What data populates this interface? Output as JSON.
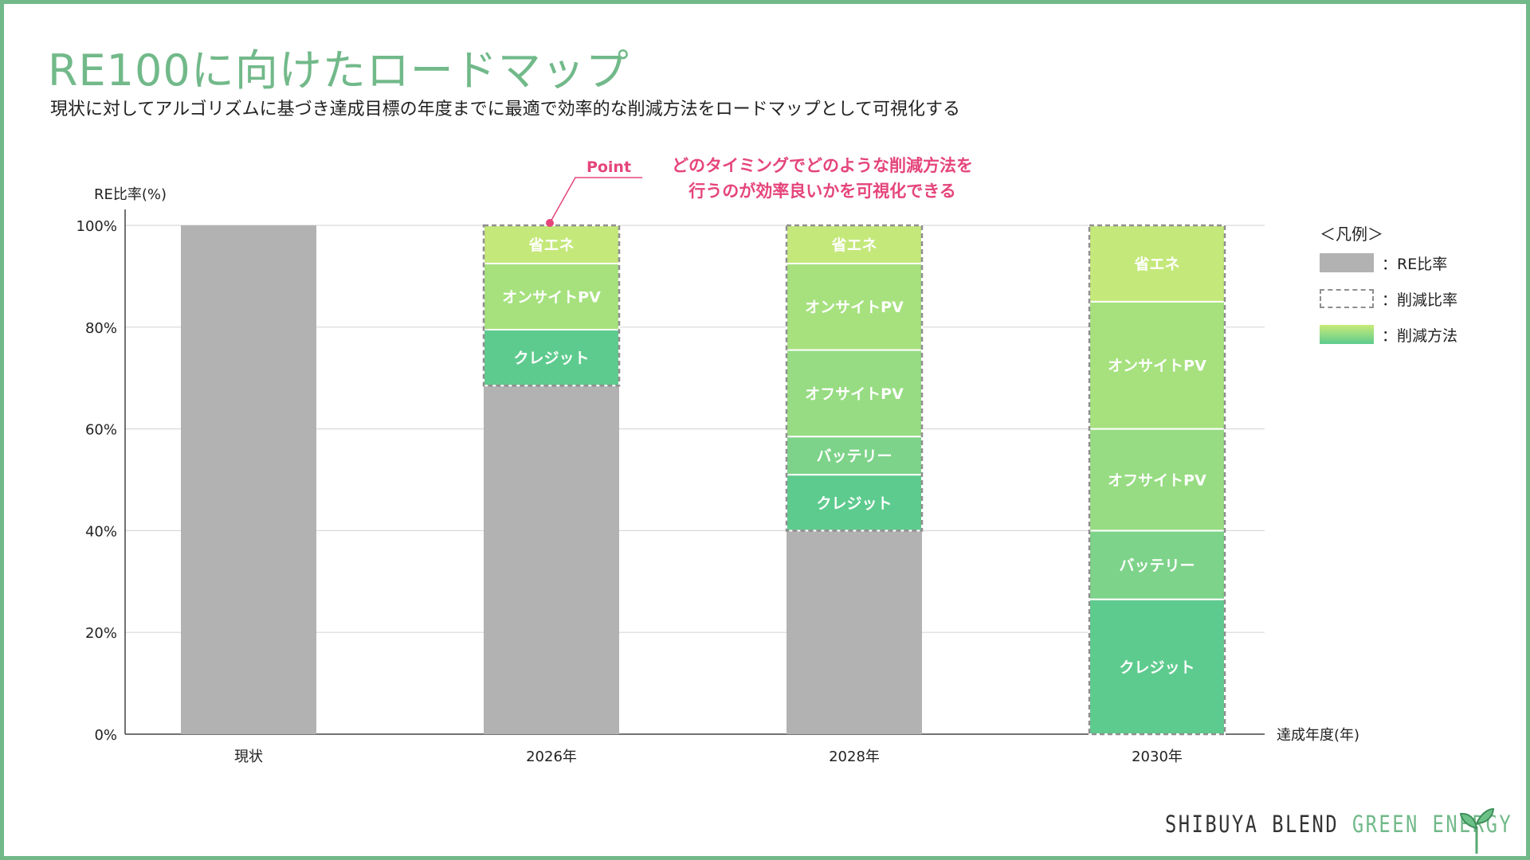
{
  "header": {
    "title": "RE100に向けたロードマップ",
    "subtitle": "現状に対してアルゴリズムに基づき達成目標の年度までに最適で効率的な削減方法をロードマップとして可視化する"
  },
  "colors": {
    "brand_green": "#72b98a",
    "re_gray": "#b2b2b2",
    "dash_gray": "#8f8f8f",
    "point_pink": "#e5457b",
    "省エネ": "#c4e87a",
    "オンサイトPV": "#a6e17e",
    "オフサイトPV": "#97dc82",
    "バッテリー": "#7dd389",
    "クレジット": "#5ecb8e"
  },
  "chart_data": {
    "type": "bar",
    "stacked": true,
    "title": "RE100に向けたロードマップ",
    "ylabel": "RE比率(%)",
    "xlabel": "達成年度(年)",
    "ylim": [
      0,
      100
    ],
    "yticks": [
      0,
      20,
      40,
      60,
      80,
      100
    ],
    "ytick_format": "%",
    "categories": [
      "現状",
      "2026年",
      "2028年",
      "2030年"
    ],
    "bars": [
      {
        "category": "現状",
        "re": 100,
        "segments": []
      },
      {
        "category": "2026年",
        "re": 68.5,
        "segments": [
          {
            "name": "クレジット",
            "value": 11
          },
          {
            "name": "オンサイトPV",
            "value": 13
          },
          {
            "name": "省エネ",
            "value": 7.5
          }
        ]
      },
      {
        "category": "2028年",
        "re": 40,
        "segments": [
          {
            "name": "クレジット",
            "value": 11
          },
          {
            "name": "バッテリー",
            "value": 7.5
          },
          {
            "name": "オフサイトPV",
            "value": 17
          },
          {
            "name": "オンサイトPV",
            "value": 17
          },
          {
            "name": "省エネ",
            "value": 7.5
          }
        ]
      },
      {
        "category": "2030年",
        "re": 0,
        "segments": [
          {
            "name": "クレジット",
            "value": 26.5
          },
          {
            "name": "バッテリー",
            "value": 13.5
          },
          {
            "name": "オフサイトPV",
            "value": 20
          },
          {
            "name": "オンサイトPV",
            "value": 25
          },
          {
            "name": "省エネ",
            "value": 15
          }
        ]
      }
    ],
    "grid": true,
    "annotation": {
      "label": "Point",
      "target_category": "2026年",
      "text_lines": [
        "どのタイミングでどのような削減方法を",
        "行うのが効率良いかを可視化できる"
      ]
    }
  },
  "legend": {
    "title": "＜凡例＞",
    "items": [
      {
        "key": "re",
        "label": "：RE比率"
      },
      {
        "key": "reduction_ratio",
        "label": "：削減比率"
      },
      {
        "key": "reduction_method",
        "label": "：削減方法"
      }
    ]
  },
  "footer": {
    "brand_part1": "SHIBUYA BLEND ",
    "brand_part2": "GREEN ENERGY",
    "logo_icon": "sprout-icon"
  }
}
